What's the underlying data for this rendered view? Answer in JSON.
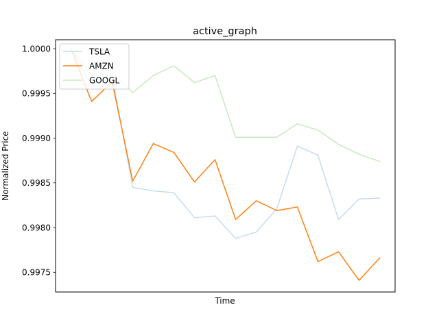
{
  "chart_data": {
    "type": "line",
    "title": "active_graph",
    "xlabel": "Time",
    "ylabel": "Normalized Price",
    "x": [
      0,
      1,
      2,
      3,
      4,
      5,
      6,
      7,
      8,
      9,
      10,
      11,
      12,
      13,
      14,
      15
    ],
    "ylim": [
      0.99728,
      1.0001
    ],
    "yticks": [
      0.9975,
      0.998,
      0.9985,
      0.999,
      0.9995,
      1.0
    ],
    "ytick_labels": [
      "0.9975",
      "0.9980",
      "0.9985",
      "0.9990",
      "0.9995",
      "1.0000"
    ],
    "grid": false,
    "legend_position": "top-left",
    "series": [
      {
        "name": "TSLA",
        "color": "#c6dbef",
        "values": [
          1.0,
          0.9996,
          0.9997,
          0.99845,
          0.99841,
          0.99839,
          0.99811,
          0.99813,
          0.99788,
          0.99795,
          0.99821,
          0.99891,
          0.99881,
          0.99809,
          0.99832,
          0.99833
        ]
      },
      {
        "name": "AMZN",
        "color": "#ff7f0e",
        "values": [
          1.0,
          0.99941,
          0.99963,
          0.99852,
          0.99894,
          0.99884,
          0.99851,
          0.99876,
          0.99809,
          0.9983,
          0.99819,
          0.99823,
          0.99762,
          0.99773,
          0.99741,
          0.99766
        ]
      },
      {
        "name": "GOOGL",
        "color": "#c7e9c0",
        "values": [
          1.0,
          0.9997,
          0.99972,
          0.99951,
          0.9997,
          0.99981,
          0.99962,
          0.9997,
          0.99901,
          0.99901,
          0.99901,
          0.99916,
          0.99909,
          0.99893,
          0.99882,
          0.99874
        ]
      }
    ]
  }
}
